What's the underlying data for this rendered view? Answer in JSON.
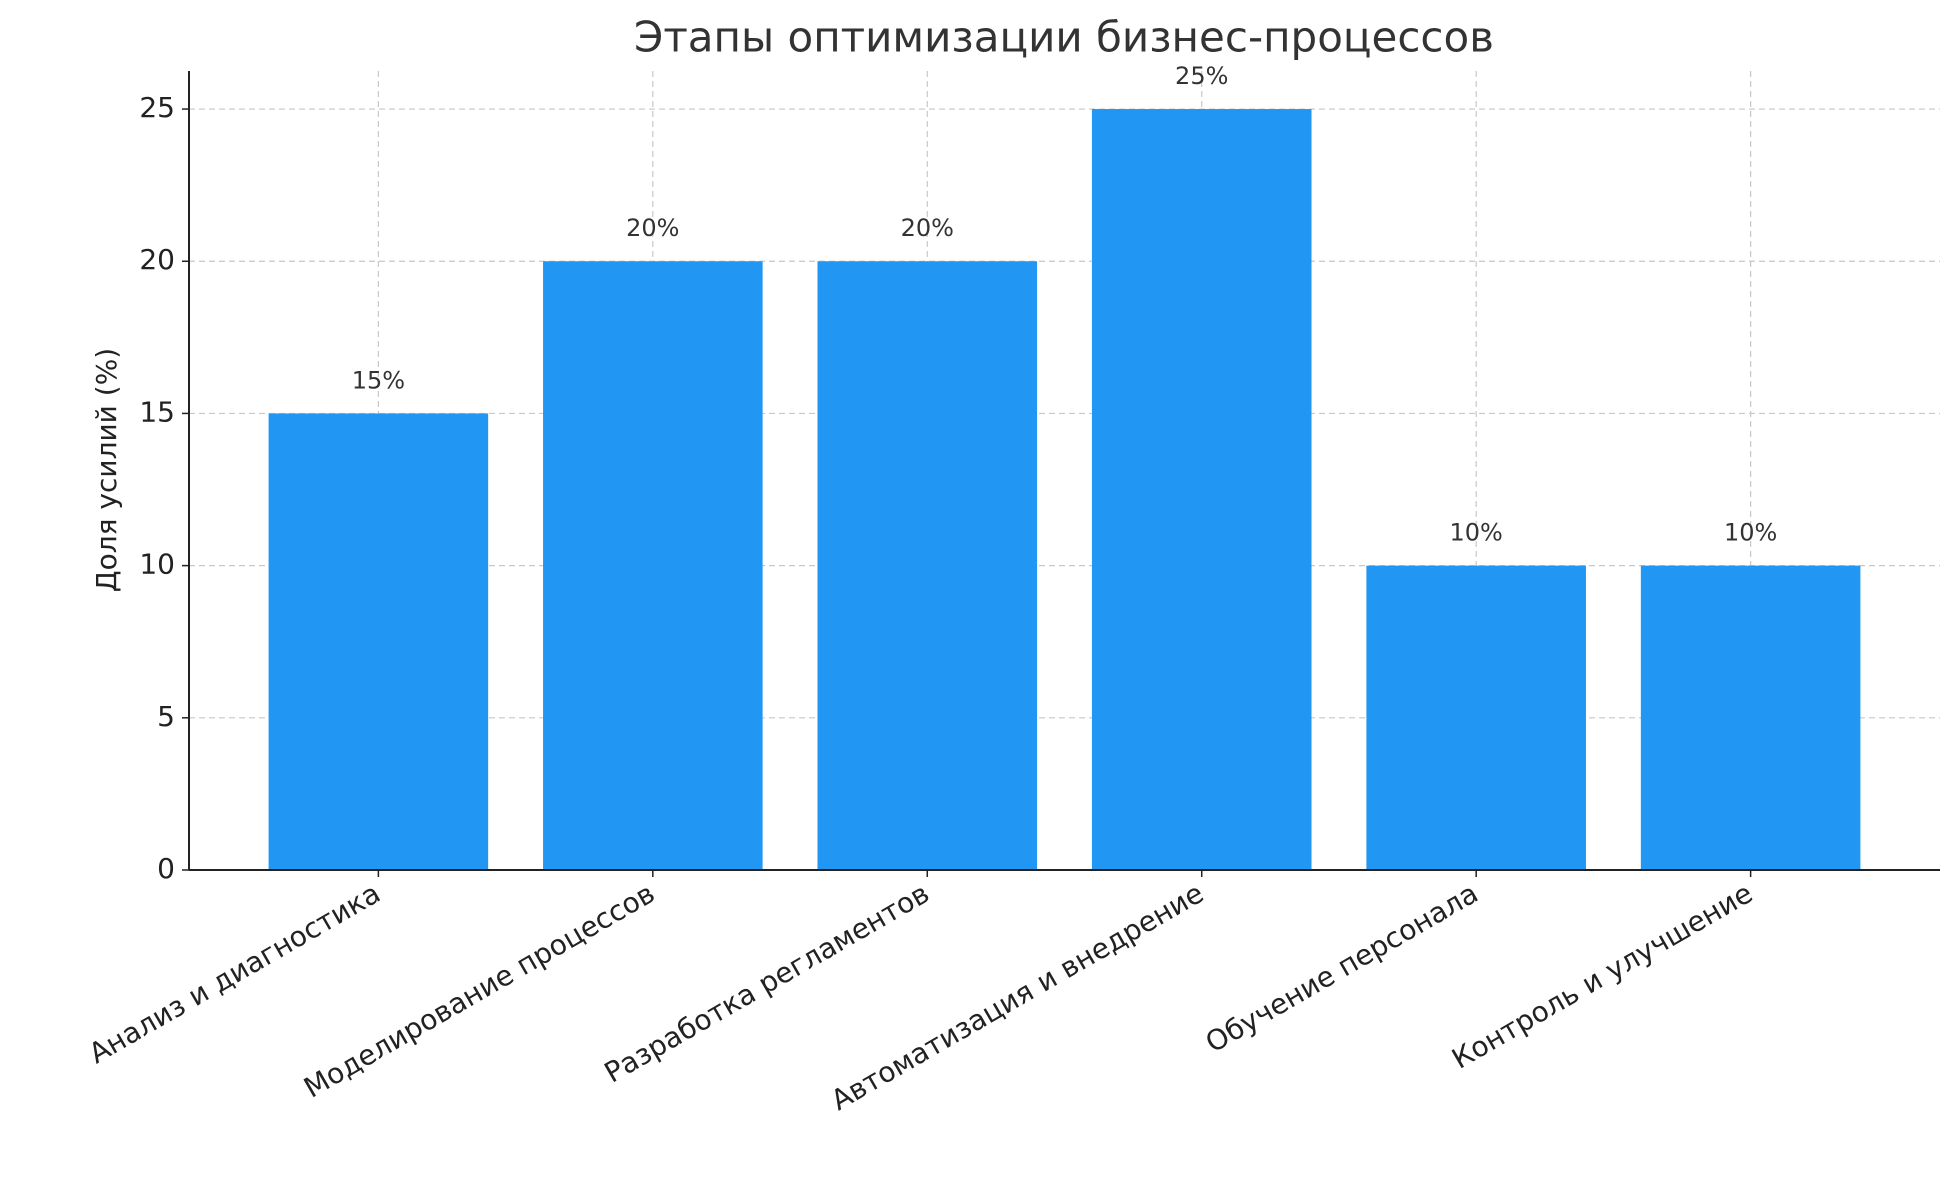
{
  "chart_data": {
    "type": "bar",
    "title": "Этапы оптимизации бизнес-процессов",
    "y_label": "Доля усилий (%)",
    "categories": [
      "Анализ и диагностика",
      "Моделирование процессов",
      "Разработка регламентов",
      "Автоматизация и внедрение",
      "Обучение персонала",
      "Контроль и улучшение"
    ],
    "values": [
      15,
      20,
      20,
      25,
      10,
      10
    ],
    "value_labels": [
      "15%",
      "20%",
      "20%",
      "25%",
      "10%",
      "10%"
    ],
    "color": "#2196f3",
    "ylim": [
      0,
      26.25
    ],
    "yticks": [
      0,
      5,
      10,
      15,
      20,
      25
    ],
    "grid": true
  }
}
